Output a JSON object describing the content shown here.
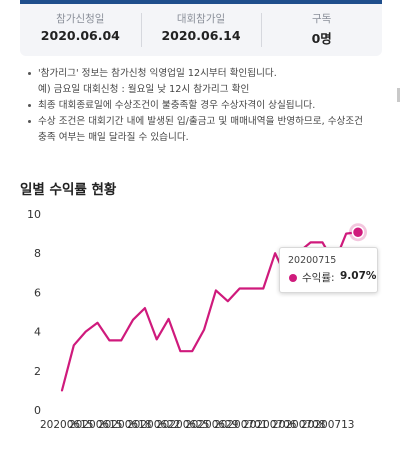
{
  "stats": [
    {
      "label": "참가신청일",
      "value": "2020.06.04"
    },
    {
      "label": "대회참가일",
      "value": "2020.06.14"
    },
    {
      "label": "구독",
      "value": "0명"
    }
  ],
  "notices": [
    [
      "'참가리그' 정보는 참가신청 익영업일 12시부터 확인됩니다.",
      "예) 금요일 대회신청 : 월요일 낮 12시 참가리그 확인"
    ],
    [
      "최종 대회종료일에 수상조건이 불충족할 경우 수상자격이 상실됩니다."
    ],
    [
      "수상 조건은 대회기간 내에 발생된 입/출금고 및 매매내역을 반영하므로, 수상조건",
      "충족 여부는 매일 달라질 수 있습니다."
    ]
  ],
  "section_title": "일별 수익률 현황",
  "tooltip": {
    "date": "20200715",
    "label": "수익률:",
    "value": "9.07%"
  },
  "colors": {
    "line": "#cf1a7c",
    "header_bar": "#1f4e8c"
  },
  "chart_data": {
    "type": "line",
    "title": "",
    "xlabel": "",
    "ylabel": "",
    "ylim": [
      0,
      10
    ],
    "y_ticks": [
      0,
      2,
      4,
      6,
      8,
      10
    ],
    "x_tick_labels": [
      "20200615",
      "20200615",
      "20200618",
      "20200622",
      "20200625",
      "20200629",
      "20200701",
      "20200706",
      "20200708",
      "20200713"
    ],
    "x": [
      "20200610",
      "20200611",
      "20200612",
      "20200615",
      "20200616",
      "20200617",
      "20200618",
      "20200619",
      "20200622",
      "20200623",
      "20200624",
      "20200625",
      "20200626",
      "20200629",
      "20200630",
      "20200701",
      "20200702",
      "20200703",
      "20200706",
      "20200707",
      "20200708",
      "20200709",
      "20200710",
      "20200713",
      "20200714",
      "20200715"
    ],
    "series": [
      {
        "values": [
          1.0,
          3.3,
          4.0,
          4.45,
          3.55,
          3.55,
          4.6,
          5.2,
          3.6,
          4.65,
          3.0,
          3.0,
          4.1,
          6.1,
          5.55,
          6.2,
          6.2,
          6.2,
          8.0,
          6.7,
          8.05,
          8.55,
          8.55,
          7.5,
          9.0,
          9.07
        ]
      }
    ],
    "highlight": {
      "x": "20200715",
      "y": 9.07
    }
  }
}
